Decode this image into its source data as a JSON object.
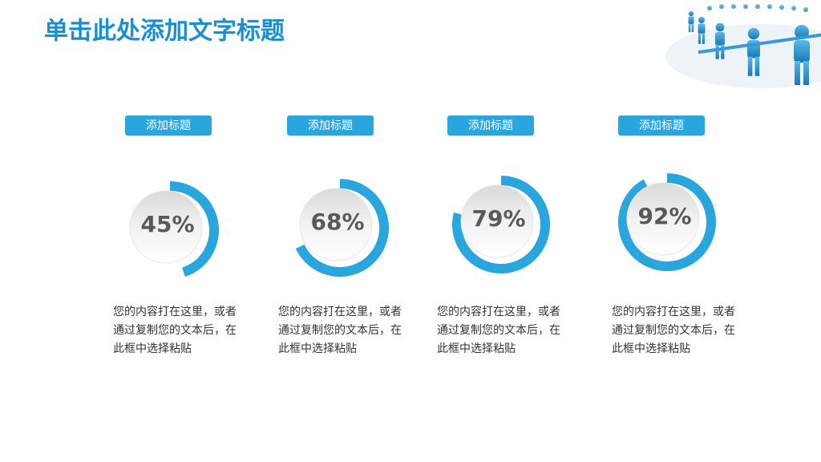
{
  "title": "单击此处添加文字标题",
  "items": [
    {
      "heading": "添加标题",
      "value": 45,
      "value_label": "45%",
      "text": [
        "您的内容打在这里，或者",
        "通过复制您的文本后，在",
        "此框中选择粘贴"
      ]
    },
    {
      "heading": "添加标题",
      "value": 68,
      "value_label": "68%",
      "text": [
        "您的内容打在这里，或者",
        "通过复制您的文本后，在",
        "此框中选择粘贴"
      ]
    },
    {
      "heading": "添加标题",
      "value": 79,
      "value_label": "79%",
      "text": [
        "您的内容打在这里，或者",
        "通过复制您的文本后，在",
        "此框中选择粘贴"
      ]
    },
    {
      "heading": "添加标题",
      "value": 92,
      "value_label": "92%",
      "text": [
        "您的内容打在这里，或者",
        "通过复制您的文本后，在",
        "此框中选择粘贴"
      ]
    }
  ],
  "max": 100
}
